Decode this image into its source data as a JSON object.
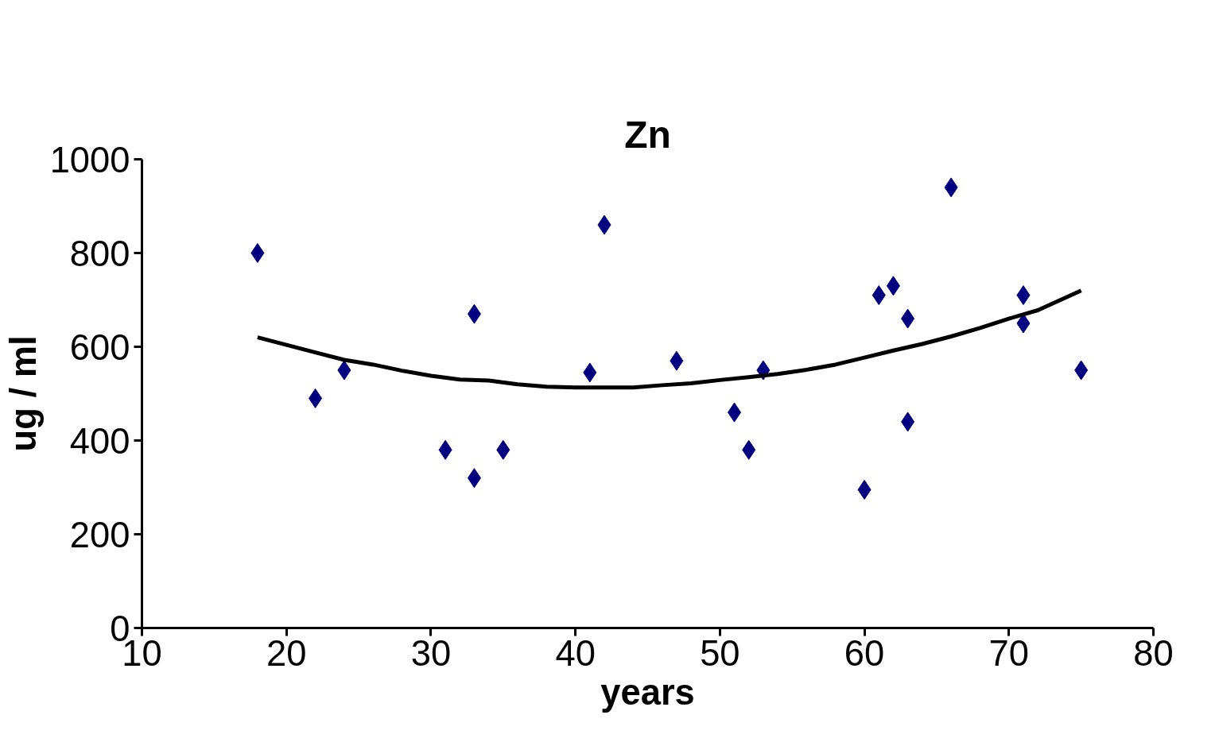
{
  "chart_data": {
    "type": "scatter",
    "title": "Zn",
    "xlabel": "years",
    "ylabel": "ug / ml",
    "xlim": [
      10,
      80
    ],
    "xticks": [
      10,
      20,
      30,
      40,
      50,
      60,
      70,
      80
    ],
    "ylim": [
      0,
      1000
    ],
    "yticks": [
      0,
      200,
      400,
      600,
      800,
      1000
    ],
    "grid": false,
    "marker": "diamond",
    "series": [
      {
        "color": "#000080",
        "x": [
          18,
          22,
          24,
          31,
          33,
          33,
          35,
          41,
          42,
          47,
          51,
          52,
          53,
          60,
          61,
          62,
          63,
          63,
          66,
          71,
          71,
          75
        ],
        "values": [
          800,
          490,
          550,
          380,
          670,
          320,
          380,
          545,
          860,
          570,
          460,
          380,
          550,
          295,
          710,
          730,
          660,
          440,
          940,
          710,
          650,
          550
        ]
      },
      {
        "type": "line",
        "color": "#000000",
        "marker": "none",
        "x": [
          18,
          20,
          22,
          24,
          26,
          28,
          30,
          32,
          34,
          36,
          38,
          40,
          42,
          44,
          46,
          48,
          50,
          52,
          54,
          56,
          58,
          60,
          62,
          64,
          66,
          68,
          70,
          72,
          75
        ],
        "values": [
          620,
          604,
          588,
          572,
          562,
          549,
          538,
          530,
          528,
          520,
          515,
          513,
          513,
          513,
          518,
          522,
          529,
          535,
          542,
          551,
          562,
          577,
          592,
          606,
          622,
          640,
          660,
          678,
          720
        ]
      }
    ]
  }
}
